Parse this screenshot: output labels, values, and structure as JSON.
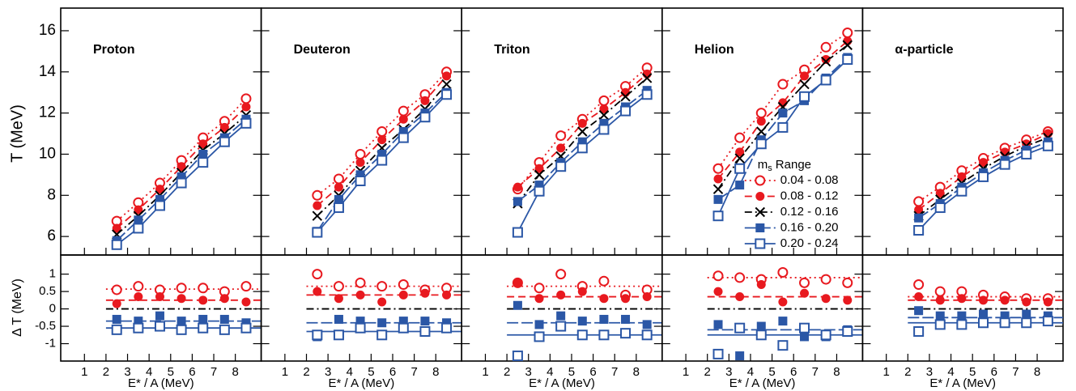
{
  "chart_data": [
    {
      "type": "line",
      "title": "Proton",
      "x": [
        2.5,
        3.5,
        4.5,
        5.5,
        6.5,
        7.5,
        8.5
      ],
      "xlim": [
        -0.1,
        9.2
      ],
      "xticks": [
        1,
        2,
        3,
        4,
        5,
        6,
        7,
        8
      ],
      "xlabel": "E* / A (MeV)",
      "ylabel": "T (MeV)",
      "ylim": [
        5.1,
        17.1
      ],
      "yticks": [
        6,
        8,
        10,
        12,
        14,
        16
      ],
      "delta_ylabel": "Δ T (MeV)",
      "delta_ylim": [
        -1.5,
        1.55
      ],
      "delta_yticks": [
        -1,
        -0.5,
        0,
        0.5,
        1
      ],
      "series": [
        {
          "color": "#e8191f",
          "marker": "open-circle",
          "dash": "dotted",
          "values": [
            6.75,
            7.65,
            8.6,
            9.7,
            10.8,
            11.6,
            12.7
          ]
        },
        {
          "color": "#e8191f",
          "marker": "circle",
          "dash": "dashed",
          "values": [
            6.4,
            7.3,
            8.3,
            9.4,
            10.5,
            11.3,
            12.3
          ]
        },
        {
          "color": "#000000",
          "marker": "cross",
          "dash": "dash-dot",
          "values": [
            6.1,
            7.0,
            8.0,
            9.1,
            10.2,
            11.0,
            11.9
          ]
        },
        {
          "color": "#2b57a6",
          "marker": "square",
          "dash": "long-dash",
          "values": [
            5.8,
            6.8,
            7.8,
            8.9,
            10.0,
            10.8,
            11.7
          ]
        },
        {
          "color": "#2b57a6",
          "marker": "open-square",
          "dash": "solid",
          "values": [
            5.6,
            6.4,
            7.5,
            8.6,
            9.6,
            10.6,
            11.5
          ]
        }
      ],
      "delta_series": [
        {
          "values": [
            0.55,
            0.65,
            0.55,
            0.6,
            0.6,
            0.5,
            0.65
          ],
          "level": 0.57
        },
        {
          "values": [
            0.15,
            0.35,
            0.35,
            0.3,
            0.25,
            0.3,
            0.2
          ],
          "level": 0.25
        },
        {
          "level": 0
        },
        {
          "values": [
            -0.3,
            -0.35,
            -0.2,
            -0.35,
            -0.3,
            -0.3,
            -0.4
          ],
          "level": -0.35
        },
        {
          "values": [
            -0.6,
            -0.55,
            -0.5,
            -0.6,
            -0.55,
            -0.6,
            -0.55
          ],
          "level": -0.55
        }
      ]
    },
    {
      "type": "line",
      "title": "Deuteron",
      "x": [
        2.5,
        3.5,
        4.5,
        5.5,
        6.5,
        7.5,
        8.5
      ],
      "xlim": [
        -0.1,
        9.2
      ],
      "xticks": [
        1,
        2,
        3,
        4,
        5,
        6,
        7,
        8
      ],
      "xlabel": "E* / A (MeV)",
      "series": [
        {
          "color": "#e8191f",
          "marker": "open-circle",
          "dash": "dotted",
          "values": [
            8.0,
            8.8,
            10.0,
            11.1,
            12.1,
            12.9,
            14.0
          ]
        },
        {
          "color": "#e8191f",
          "marker": "circle",
          "dash": "dashed",
          "values": [
            7.5,
            8.4,
            9.6,
            10.7,
            11.7,
            12.6,
            13.8
          ]
        },
        {
          "color": "#000000",
          "marker": "cross",
          "dash": "dash-dot",
          "values": [
            7.0,
            8.0,
            9.2,
            10.3,
            11.2,
            12.2,
            13.4
          ]
        },
        {
          "color": "#2b57a6",
          "marker": "square",
          "dash": "long-dash",
          "values": [
            6.25,
            7.8,
            9.0,
            10.0,
            11.1,
            12.0,
            13.0
          ]
        },
        {
          "color": "#2b57a6",
          "marker": "open-square",
          "dash": "solid",
          "values": [
            6.2,
            7.4,
            8.7,
            9.7,
            10.8,
            11.8,
            12.9
          ]
        }
      ],
      "delta_series": [
        {
          "values": [
            1.0,
            0.65,
            0.75,
            0.65,
            0.7,
            0.55,
            0.6
          ],
          "level": 0.65
        },
        {
          "values": [
            0.5,
            0.3,
            0.4,
            0.2,
            0.4,
            0.45,
            0.4
          ],
          "level": 0.4
        },
        {
          "level": 0
        },
        {
          "values": [
            -0.8,
            -0.3,
            -0.35,
            -0.4,
            -0.35,
            -0.35,
            -0.4
          ],
          "level": -0.4
        },
        {
          "values": [
            -0.75,
            -0.75,
            -0.55,
            -0.75,
            -0.55,
            -0.65,
            -0.55
          ],
          "level": -0.65
        }
      ]
    },
    {
      "type": "line",
      "title": "Triton",
      "x": [
        2.5,
        3.5,
        4.5,
        5.5,
        6.5,
        7.5,
        8.5
      ],
      "xlim": [
        -0.1,
        9.2
      ],
      "xticks": [
        1,
        2,
        3,
        4,
        5,
        6,
        7,
        8
      ],
      "xlabel": "E* / A (MeV)",
      "series": [
        {
          "color": "#e8191f",
          "marker": "open-circle",
          "dash": "dotted",
          "values": [
            8.3,
            9.6,
            10.9,
            11.7,
            12.6,
            13.3,
            14.2
          ]
        },
        {
          "color": "#e8191f",
          "marker": "circle",
          "dash": "dashed",
          "values": [
            8.4,
            9.3,
            10.3,
            11.5,
            12.2,
            13.0,
            13.9
          ]
        },
        {
          "color": "#000000",
          "marker": "cross",
          "dash": "dash-dot",
          "values": [
            7.6,
            9.0,
            9.9,
            11.1,
            11.9,
            12.8,
            13.7
          ]
        },
        {
          "color": "#2b57a6",
          "marker": "square",
          "dash": "long-dash",
          "values": [
            7.7,
            8.5,
            9.6,
            10.6,
            11.5,
            12.3,
            13.1
          ]
        },
        {
          "color": "#2b57a6",
          "marker": "open-square",
          "dash": "solid",
          "values": [
            6.2,
            8.2,
            9.4,
            10.3,
            11.2,
            12.1,
            12.9
          ]
        }
      ],
      "delta_series": [
        {
          "values": [
            0.75,
            0.6,
            1.0,
            0.65,
            0.8,
            0.4,
            0.55
          ],
          "level": 0.65
        },
        {
          "values": [
            0.75,
            0.3,
            0.4,
            0.5,
            0.3,
            0.3,
            0.35
          ],
          "level": 0.35
        },
        {
          "level": 0
        },
        {
          "values": [
            0.1,
            -0.45,
            -0.2,
            -0.35,
            -0.3,
            -0.3,
            -0.45
          ],
          "level": -0.4
        },
        {
          "values": [
            -1.35,
            -0.8,
            -0.5,
            -0.75,
            -0.75,
            -0.7,
            -0.75
          ],
          "level": -0.75
        }
      ]
    },
    {
      "type": "line",
      "title": "Helion",
      "x": [
        2.5,
        3.5,
        4.5,
        5.5,
        6.5,
        7.5,
        8.5
      ],
      "xlim": [
        -0.1,
        9.2
      ],
      "xticks": [
        1,
        2,
        3,
        4,
        5,
        6,
        7,
        8
      ],
      "xlabel": "E* / A (MeV)",
      "legend_title": [
        "m",
        "s",
        "Range"
      ],
      "series": [
        {
          "name": "0.04 - 0.08",
          "color": "#e8191f",
          "marker": "open-circle",
          "dash": "dotted",
          "values": [
            9.3,
            10.8,
            12.0,
            13.4,
            14.1,
            15.2,
            15.9
          ]
        },
        {
          "name": "0.08 - 0.12",
          "color": "#e8191f",
          "marker": "circle",
          "dash": "dashed",
          "values": [
            8.8,
            10.1,
            11.6,
            12.5,
            13.8,
            14.6,
            15.5
          ]
        },
        {
          "name": "0.12 - 0.16",
          "color": "#000000",
          "marker": "cross",
          "dash": "dash-dot",
          "values": [
            8.3,
            9.8,
            11.1,
            12.3,
            13.4,
            14.5,
            15.3
          ]
        },
        {
          "name": "0.16 - 0.20",
          "color": "#2b57a6",
          "marker": "square",
          "dash": "long-dash",
          "values": [
            7.8,
            8.5,
            10.7,
            12.0,
            12.6,
            13.7,
            14.7
          ]
        },
        {
          "name": "0.20 - 0.24",
          "color": "#2b57a6",
          "marker": "open-square",
          "dash": "solid",
          "values": [
            7.0,
            9.3,
            10.5,
            11.3,
            12.8,
            13.6,
            14.6
          ]
        }
      ],
      "delta_series": [
        {
          "values": [
            0.95,
            0.9,
            0.85,
            1.05,
            0.75,
            0.85,
            0.75
          ],
          "level": 0.9
        },
        {
          "values": [
            0.5,
            0.35,
            0.7,
            0.2,
            0.45,
            0.3,
            0.25
          ],
          "level": 0.35
        },
        {
          "level": 0
        },
        {
          "values": [
            -0.45,
            -1.35,
            -0.5,
            -0.35,
            -0.8,
            -0.8,
            -0.6
          ],
          "level": -0.6
        },
        {
          "values": [
            -1.3,
            -0.55,
            -0.75,
            -1.05,
            -0.55,
            -0.75,
            -0.65
          ],
          "level": -0.75
        }
      ]
    },
    {
      "type": "line",
      "title": "α-particle",
      "x": [
        2.5,
        3.5,
        4.5,
        5.5,
        6.5,
        7.5,
        8.5
      ],
      "xlim": [
        -0.1,
        9.2
      ],
      "xticks": [
        1,
        2,
        3,
        4,
        5,
        6,
        7,
        8
      ],
      "xlabel": "E* / A (MeV)",
      "series": [
        {
          "color": "#e8191f",
          "marker": "open-circle",
          "dash": "dotted",
          "values": [
            7.7,
            8.4,
            9.2,
            9.8,
            10.3,
            10.7,
            11.1
          ]
        },
        {
          "color": "#e8191f",
          "marker": "circle",
          "dash": "dashed",
          "values": [
            7.3,
            8.1,
            8.9,
            9.6,
            10.1,
            10.5,
            11.0
          ]
        },
        {
          "color": "#000000",
          "marker": "cross",
          "dash": "dash-dot",
          "values": [
            7.0,
            7.8,
            8.6,
            9.3,
            9.9,
            10.4,
            10.8
          ]
        },
        {
          "color": "#2b57a6",
          "marker": "square",
          "dash": "long-dash",
          "values": [
            6.9,
            7.6,
            8.4,
            9.1,
            9.7,
            10.2,
            10.6
          ]
        },
        {
          "color": "#2b57a6",
          "marker": "open-square",
          "dash": "solid",
          "values": [
            6.3,
            7.4,
            8.2,
            8.9,
            9.5,
            10.0,
            10.4
          ]
        }
      ],
      "delta_series": [
        {
          "values": [
            0.7,
            0.5,
            0.5,
            0.4,
            0.35,
            0.3,
            0.3
          ],
          "level": 0.35
        },
        {
          "values": [
            0.35,
            0.25,
            0.3,
            0.25,
            0.25,
            0.2,
            0.2
          ],
          "level": 0.25
        },
        {
          "level": 0
        },
        {
          "values": [
            -0.05,
            -0.2,
            -0.2,
            -0.15,
            -0.2,
            -0.15,
            -0.2
          ],
          "level": -0.25
        },
        {
          "values": [
            -0.65,
            -0.45,
            -0.45,
            -0.4,
            -0.4,
            -0.4,
            -0.35
          ],
          "level": -0.4
        }
      ]
    }
  ]
}
